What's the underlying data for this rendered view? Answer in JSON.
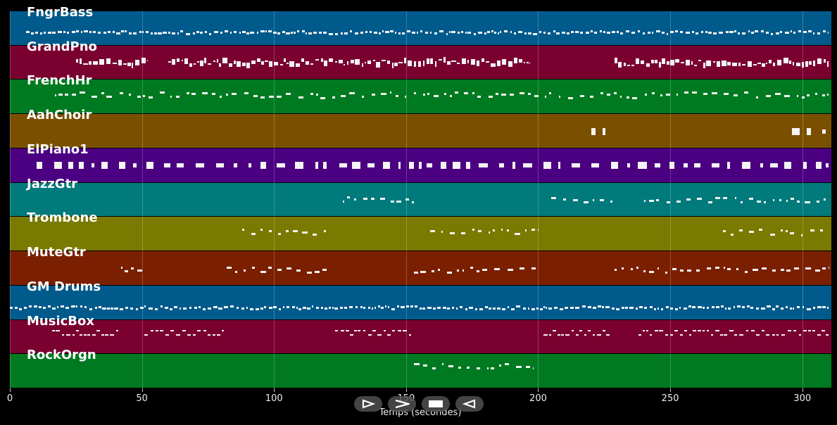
{
  "tracks": [
    {
      "name": "FngrBass",
      "color": "#005a8c",
      "activity": [
        [
          6,
          310
        ]
      ],
      "style": "dense",
      "pitch": 0.62
    },
    {
      "name": "GrandPno",
      "color": "#7a0030",
      "activity": [
        [
          25,
          52
        ],
        [
          60,
          197
        ],
        [
          229,
          310
        ]
      ],
      "style": "chords",
      "pitch": 0.5
    },
    {
      "name": "FrenchHr",
      "color": "#007a20",
      "activity": [
        [
          17,
          152
        ],
        [
          153,
          310
        ]
      ],
      "style": "sparse",
      "pitch": 0.45
    },
    {
      "name": "AahChoir",
      "color": "#7a5000",
      "activity": [
        [
          220,
          227
        ],
        [
          296,
          309
        ]
      ],
      "style": "blocks",
      "pitch": 0.5
    },
    {
      "name": "ElPiano1",
      "color": "#4b0082",
      "activity": [
        [
          10,
          310
        ]
      ],
      "style": "blocks",
      "pitch": 0.5
    },
    {
      "name": "JazzGtr",
      "color": "#007a7a",
      "activity": [
        [
          126,
          153
        ],
        [
          205,
          228
        ],
        [
          240,
          310
        ]
      ],
      "style": "sparse",
      "pitch": 0.5
    },
    {
      "name": "Trombone",
      "color": "#7a7a00",
      "activity": [
        [
          88,
          120
        ],
        [
          159,
          200
        ],
        [
          270,
          310
        ]
      ],
      "style": "sparse",
      "pitch": 0.45
    },
    {
      "name": "MuteGtr",
      "color": "#7a2000",
      "activity": [
        [
          42,
          50
        ],
        [
          82,
          120
        ],
        [
          153,
          200
        ],
        [
          229,
          310
        ]
      ],
      "style": "sparse",
      "pitch": 0.55
    },
    {
      "name": "GM Drums",
      "color": "#005a8c",
      "activity": [
        [
          0,
          310
        ]
      ],
      "style": "dense",
      "pitch": 0.65
    },
    {
      "name": "MusicBox",
      "color": "#7a0030",
      "activity": [
        [
          16,
          41
        ],
        [
          51,
          81
        ],
        [
          123,
          152
        ],
        [
          202,
          227
        ],
        [
          238,
          310
        ]
      ],
      "style": "paired",
      "pitch": 0.38
    },
    {
      "name": "RockOrgn",
      "color": "#007a20",
      "activity": [
        [
          153,
          198
        ]
      ],
      "style": "sparse",
      "pitch": 0.35
    }
  ],
  "axis": {
    "xlabel": "Temps (secondes)",
    "xlim": [
      0,
      311
    ],
    "ticks": [
      0,
      50,
      100,
      150,
      200,
      250,
      300
    ],
    "grid": true
  },
  "controls": [
    {
      "name": "play-icon",
      "label": "play"
    },
    {
      "name": "forward-icon",
      "label": "forward"
    },
    {
      "name": "stop-icon",
      "label": "stop"
    },
    {
      "name": "rewind-icon",
      "label": "rewind"
    }
  ]
}
